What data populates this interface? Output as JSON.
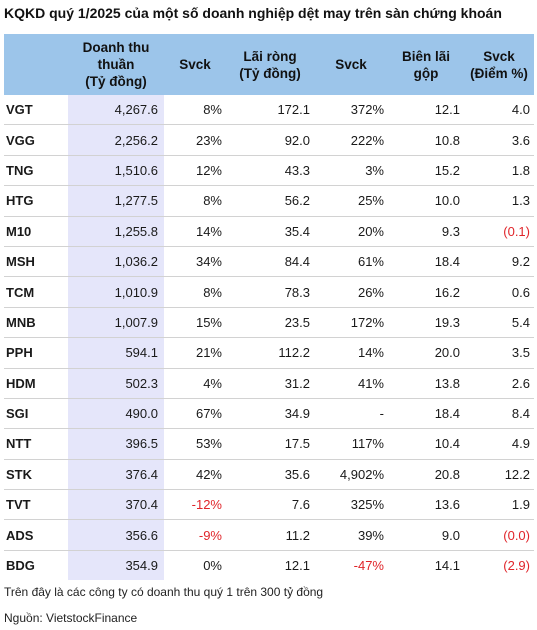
{
  "title": "KQKD quý 1/2025 của một số doanh nghiệp dệt may trên sàn chứng khoán",
  "columns": [
    {
      "line1": "",
      "line2": "",
      "line3": ""
    },
    {
      "line1": "Doanh thu",
      "line2": "thuần",
      "line3": "(Tỷ đồng)"
    },
    {
      "line1": "Svck",
      "line2": "",
      "line3": ""
    },
    {
      "line1": "Lãi ròng",
      "line2": "(Tỷ đồng)",
      "line3": ""
    },
    {
      "line1": "Svck",
      "line2": "",
      "line3": ""
    },
    {
      "line1": "Biên lãi",
      "line2": "gộp",
      "line3": ""
    },
    {
      "line1": "Svck",
      "line2": "(Điểm %)",
      "line3": ""
    }
  ],
  "rows": [
    {
      "ticker": "VGT",
      "revenue": "4,267.6",
      "rev_yoy": "8%",
      "profit": "172.1",
      "profit_yoy": "372%",
      "margin": "12.1",
      "margin_yoy": "4.0"
    },
    {
      "ticker": "VGG",
      "revenue": "2,256.2",
      "rev_yoy": "23%",
      "profit": "92.0",
      "profit_yoy": "222%",
      "margin": "10.8",
      "margin_yoy": "3.6"
    },
    {
      "ticker": "TNG",
      "revenue": "1,510.6",
      "rev_yoy": "12%",
      "profit": "43.3",
      "profit_yoy": "3%",
      "margin": "15.2",
      "margin_yoy": "1.8"
    },
    {
      "ticker": "HTG",
      "revenue": "1,277.5",
      "rev_yoy": "8%",
      "profit": "56.2",
      "profit_yoy": "25%",
      "margin": "10.0",
      "margin_yoy": "1.3"
    },
    {
      "ticker": "M10",
      "revenue": "1,255.8",
      "rev_yoy": "14%",
      "profit": "35.4",
      "profit_yoy": "20%",
      "margin": "9.3",
      "margin_yoy": "(0.1)"
    },
    {
      "ticker": "MSH",
      "revenue": "1,036.2",
      "rev_yoy": "34%",
      "profit": "84.4",
      "profit_yoy": "61%",
      "margin": "18.4",
      "margin_yoy": "9.2"
    },
    {
      "ticker": "TCM",
      "revenue": "1,010.9",
      "rev_yoy": "8%",
      "profit": "78.3",
      "profit_yoy": "26%",
      "margin": "16.2",
      "margin_yoy": "0.6"
    },
    {
      "ticker": "MNB",
      "revenue": "1,007.9",
      "rev_yoy": "15%",
      "profit": "23.5",
      "profit_yoy": "172%",
      "margin": "19.3",
      "margin_yoy": "5.4"
    },
    {
      "ticker": "PPH",
      "revenue": "594.1",
      "rev_yoy": "21%",
      "profit": "112.2",
      "profit_yoy": "14%",
      "margin": "20.0",
      "margin_yoy": "3.5"
    },
    {
      "ticker": "HDM",
      "revenue": "502.3",
      "rev_yoy": "4%",
      "profit": "31.2",
      "profit_yoy": "41%",
      "margin": "13.8",
      "margin_yoy": "2.6"
    },
    {
      "ticker": "SGI",
      "revenue": "490.0",
      "rev_yoy": "67%",
      "profit": "34.9",
      "profit_yoy": "-",
      "margin": "18.4",
      "margin_yoy": "8.4"
    },
    {
      "ticker": "NTT",
      "revenue": "396.5",
      "rev_yoy": "53%",
      "profit": "17.5",
      "profit_yoy": "117%",
      "margin": "10.4",
      "margin_yoy": "4.9"
    },
    {
      "ticker": "STK",
      "revenue": "376.4",
      "rev_yoy": "42%",
      "profit": "35.6",
      "profit_yoy": "4,902%",
      "margin": "20.8",
      "margin_yoy": "12.2"
    },
    {
      "ticker": "TVT",
      "revenue": "370.4",
      "rev_yoy": "-12%",
      "profit": "7.6",
      "profit_yoy": "325%",
      "margin": "13.6",
      "margin_yoy": "1.9"
    },
    {
      "ticker": "ADS",
      "revenue": "356.6",
      "rev_yoy": "-9%",
      "profit": "11.2",
      "profit_yoy": "39%",
      "margin": "9.0",
      "margin_yoy": "(0.0)"
    },
    {
      "ticker": "BDG",
      "revenue": "354.9",
      "rev_yoy": "0%",
      "profit": "12.1",
      "profit_yoy": "-47%",
      "margin": "14.1",
      "margin_yoy": "(2.9)"
    }
  ],
  "note": "Trên đây là các công ty có doanh thu quý 1 trên 300 tỷ đồng",
  "source": "Nguồn: VietstockFinance",
  "colors": {
    "header_bg": "#9cc5ea",
    "revenue_col_bg": "#e5e6fa",
    "negative": "#e0252a"
  }
}
